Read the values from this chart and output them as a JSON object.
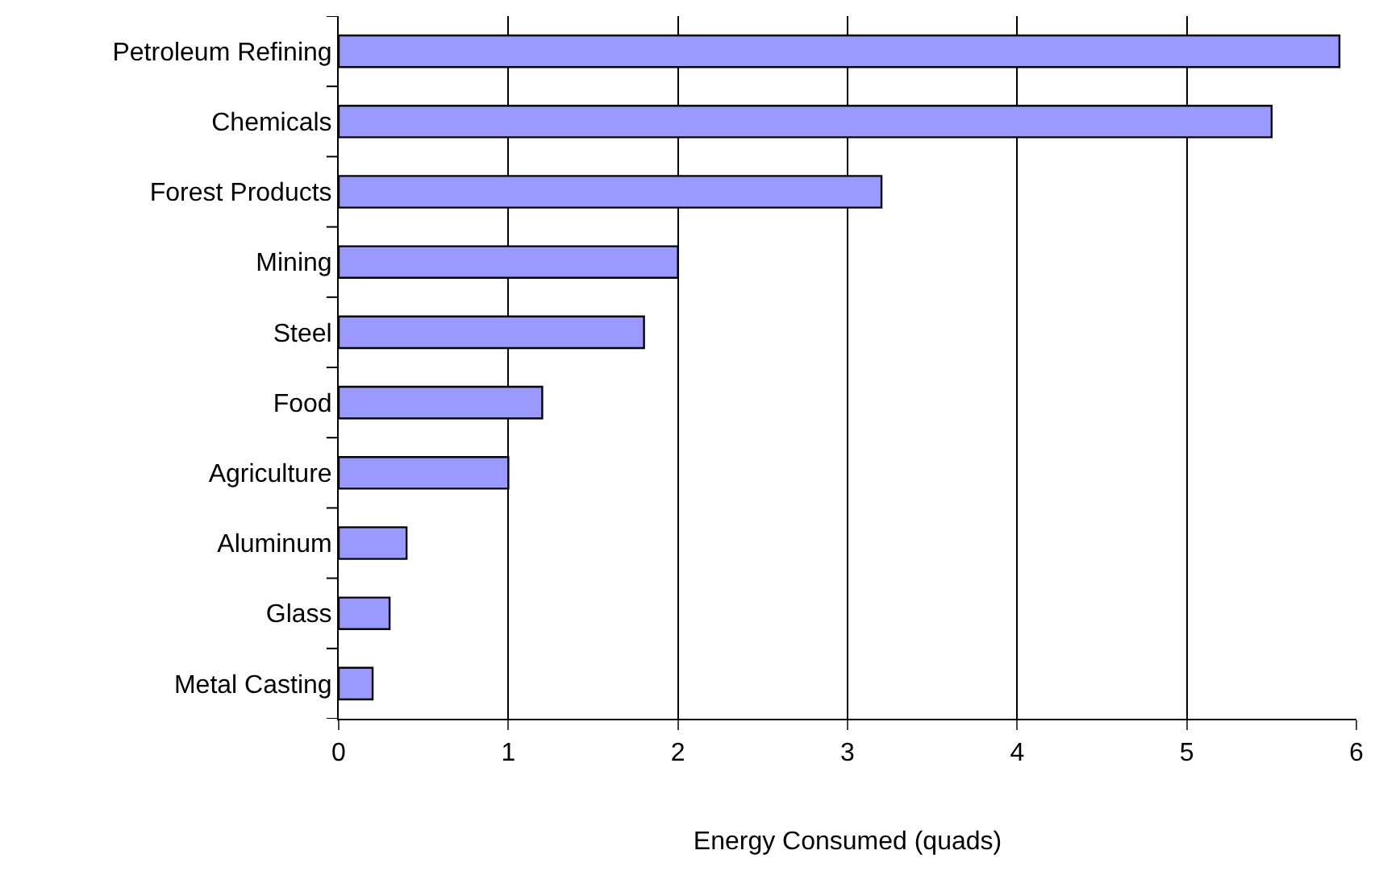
{
  "chart_data": {
    "type": "bar",
    "orientation": "horizontal",
    "xlabel": "Energy Consumed (quads)",
    "categories": [
      "Petroleum Refining",
      "Chemicals",
      "Forest Products",
      "Mining",
      "Steel",
      "Food",
      "Agriculture",
      "Aluminum",
      "Glass",
      "Metal Casting"
    ],
    "values": [
      5.9,
      5.5,
      3.2,
      2.0,
      1.8,
      1.2,
      1.0,
      0.4,
      0.3,
      0.2
    ],
    "color": "#9999ff",
    "xlim": [
      0,
      6
    ],
    "xticks": [
      0,
      1,
      2,
      3,
      4,
      5,
      6
    ],
    "grid": "x",
    "legend": false
  }
}
